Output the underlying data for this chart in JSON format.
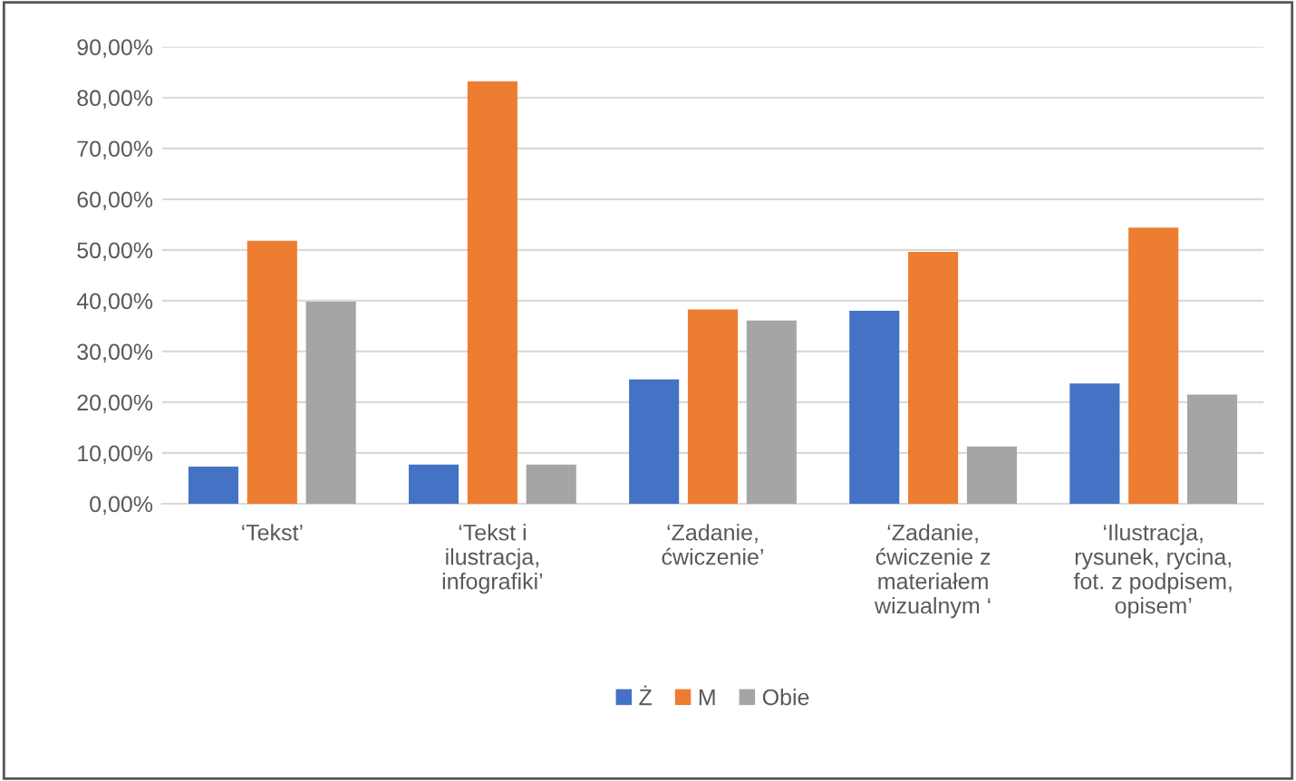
{
  "chart_data": {
    "type": "bar",
    "categories": [
      "‘Tekst’",
      "‘Tekst i\nilustracja,\ninfografiki’",
      "‘Zadanie,\nćwiczenie’",
      "‘Zadanie,\nćwiczenie z\nmateriałem\nwizualnym ‘",
      "‘Ilustracja,\nrysunek, rycina,\nfot. z podpisem,\nopisem’"
    ],
    "series": [
      {
        "name": "Ż",
        "color": "#4472c4",
        "values": [
          7.3,
          7.7,
          24.5,
          38.0,
          23.7
        ]
      },
      {
        "name": "M",
        "color": "#ed7d31",
        "values": [
          51.8,
          83.2,
          38.3,
          49.6,
          54.4
        ]
      },
      {
        "name": "Obie",
        "color": "#a5a5a5",
        "values": [
          39.8,
          7.7,
          36.1,
          11.3,
          21.5
        ]
      }
    ],
    "ylim": [
      0,
      90
    ],
    "yticks": [
      {
        "value": 0,
        "label": "0,00%"
      },
      {
        "value": 10,
        "label": "10,00%"
      },
      {
        "value": 20,
        "label": "20,00%"
      },
      {
        "value": 30,
        "label": "30,00%"
      },
      {
        "value": 40,
        "label": "40,00%"
      },
      {
        "value": 50,
        "label": "50,00%"
      },
      {
        "value": 60,
        "label": "60,00%"
      },
      {
        "value": 70,
        "label": "70,00%"
      },
      {
        "value": 80,
        "label": "80,00%"
      },
      {
        "value": 90,
        "label": "90,00%"
      }
    ],
    "grid": "y",
    "legend": "bottom"
  }
}
